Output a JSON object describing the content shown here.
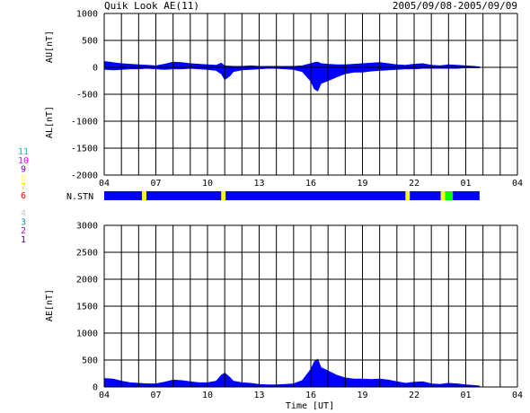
{
  "header": {
    "title": "Quik Look AE(11)",
    "date_range": "2005/09/08-2005/09/09"
  },
  "station_legend": {
    "labels": [
      "11",
      "10",
      "9",
      "8",
      "7",
      "6",
      "5",
      "4",
      "3",
      "2",
      "1"
    ],
    "colors": [
      "#00c8c8",
      "#ff00ff",
      "#6a00c8",
      "#ffff66",
      "#ffd000",
      "#ff0000",
      "#ffffff",
      "#c8c8c8",
      "#00a0a0",
      "#c800c8",
      "#5000a0"
    ]
  },
  "station_bar": {
    "label": "N.STN",
    "color_main": "#0000ff",
    "segments": [
      {
        "start": 4.0,
        "end": 6.2,
        "color": "#0000ff"
      },
      {
        "start": 6.2,
        "end": 6.45,
        "color": "#ffff00"
      },
      {
        "start": 6.45,
        "end": 10.8,
        "color": "#0000ff"
      },
      {
        "start": 10.8,
        "end": 11.05,
        "color": "#ffff00"
      },
      {
        "start": 11.05,
        "end": 21.5,
        "color": "#0000ff"
      },
      {
        "start": 21.5,
        "end": 21.75,
        "color": "#ffff00"
      },
      {
        "start": 21.75,
        "end": 23.55,
        "color": "#0000ff"
      },
      {
        "start": 23.55,
        "end": 23.8,
        "color": "#ffff00"
      },
      {
        "start": 23.8,
        "end": 24.25,
        "color": "#00ff00"
      },
      {
        "start": 24.25,
        "end": 25.8,
        "color": "#0000ff"
      }
    ]
  },
  "chart_data": [
    {
      "type": "area",
      "panel": "AU/AL",
      "ylabel_top": "AU[nT]",
      "ylabel_bottom": "AL[nT]",
      "ylim": [
        -2000,
        1000
      ],
      "y_ticks": [
        1000,
        500,
        0,
        -500,
        -1000,
        -1500,
        -2000
      ],
      "xlim": [
        4,
        28
      ],
      "x_ticks": [
        "04",
        "07",
        "10",
        "13",
        "16",
        "19",
        "22",
        "01",
        "04"
      ],
      "x_tick_hours": [
        4,
        7,
        10,
        13,
        16,
        19,
        22,
        25,
        28
      ],
      "grid": true,
      "fill_color": "#0000ff",
      "series": [
        {
          "x": [
            4.0,
            4.5,
            5.0,
            5.5,
            6.0,
            6.5,
            7.0,
            7.5,
            8.0,
            8.5,
            9.0,
            9.5,
            10.0,
            10.5,
            10.8,
            11.0,
            11.5,
            12.0,
            12.5,
            13.0,
            13.5,
            14.0,
            14.5,
            15.0,
            15.5,
            16.0,
            16.2,
            16.4,
            16.6,
            17.0,
            17.5,
            18.0,
            18.5,
            19.0,
            19.5,
            20.0,
            20.5,
            21.0,
            21.5,
            22.0,
            22.5,
            23.0,
            23.5,
            24.0,
            24.5,
            25.0,
            25.5,
            25.8
          ],
          "values": [
            110,
            90,
            70,
            60,
            50,
            40,
            30,
            60,
            100,
            90,
            70,
            60,
            50,
            40,
            80,
            30,
            20,
            20,
            30,
            20,
            20,
            20,
            20,
            20,
            30,
            70,
            90,
            100,
            70,
            60,
            50,
            50,
            60,
            70,
            80,
            90,
            70,
            50,
            40,
            60,
            70,
            40,
            30,
            50,
            40,
            30,
            20,
            10
          ]
        },
        {
          "x": [
            4.0,
            4.5,
            5.0,
            5.5,
            6.0,
            6.5,
            7.0,
            7.5,
            8.0,
            8.5,
            9.0,
            9.5,
            10.0,
            10.5,
            10.8,
            11.0,
            11.3,
            11.5,
            12.0,
            12.5,
            13.0,
            13.5,
            14.0,
            14.5,
            15.0,
            15.5,
            16.0,
            16.2,
            16.4,
            16.6,
            17.0,
            17.5,
            18.0,
            18.5,
            19.0,
            19.5,
            20.0,
            20.5,
            21.0,
            21.5,
            22.0,
            22.5,
            23.0,
            23.5,
            24.0,
            24.5,
            25.0,
            25.5,
            25.8
          ],
          "values": [
            -40,
            -50,
            -40,
            -30,
            -30,
            -20,
            -30,
            -40,
            -30,
            -30,
            -20,
            -30,
            -40,
            -60,
            -120,
            -230,
            -160,
            -80,
            -50,
            -40,
            -30,
            -20,
            -20,
            -30,
            -40,
            -80,
            -260,
            -400,
            -440,
            -300,
            -250,
            -180,
            -120,
            -90,
            -90,
            -70,
            -60,
            -50,
            -40,
            -30,
            -30,
            -20,
            -20,
            -20,
            -20,
            -20,
            -10,
            -10,
            -10
          ]
        }
      ]
    },
    {
      "type": "area",
      "panel": "AE",
      "ylabel": "AE[nT]",
      "xlabel": "Time [UT]",
      "ylim": [
        0,
        3000
      ],
      "y_ticks": [
        3000,
        2500,
        2000,
        1500,
        1000,
        500,
        0
      ],
      "xlim": [
        4,
        28
      ],
      "x_ticks": [
        "04",
        "07",
        "10",
        "13",
        "16",
        "19",
        "22",
        "01",
        "04"
      ],
      "x_tick_hours": [
        4,
        7,
        10,
        13,
        16,
        19,
        22,
        25,
        28
      ],
      "grid": true,
      "fill_color": "#0000ff",
      "series": [
        {
          "x": [
            4.0,
            4.5,
            5.0,
            5.5,
            6.0,
            6.5,
            7.0,
            7.5,
            8.0,
            8.5,
            9.0,
            9.5,
            10.0,
            10.5,
            10.8,
            11.0,
            11.3,
            11.5,
            12.0,
            12.5,
            13.0,
            13.5,
            14.0,
            14.5,
            15.0,
            15.5,
            16.0,
            16.2,
            16.4,
            16.6,
            17.0,
            17.5,
            18.0,
            18.5,
            19.0,
            19.5,
            20.0,
            20.5,
            21.0,
            21.5,
            22.0,
            22.5,
            23.0,
            23.5,
            24.0,
            24.5,
            25.0,
            25.5,
            25.8
          ],
          "values": [
            160,
            150,
            110,
            80,
            70,
            60,
            60,
            90,
            130,
            120,
            100,
            80,
            80,
            110,
            220,
            260,
            180,
            110,
            80,
            70,
            50,
            40,
            40,
            50,
            60,
            120,
            330,
            470,
            520,
            360,
            300,
            220,
            170,
            150,
            150,
            140,
            150,
            130,
            100,
            70,
            90,
            100,
            60,
            50,
            70,
            60,
            40,
            30,
            20
          ]
        }
      ]
    }
  ]
}
